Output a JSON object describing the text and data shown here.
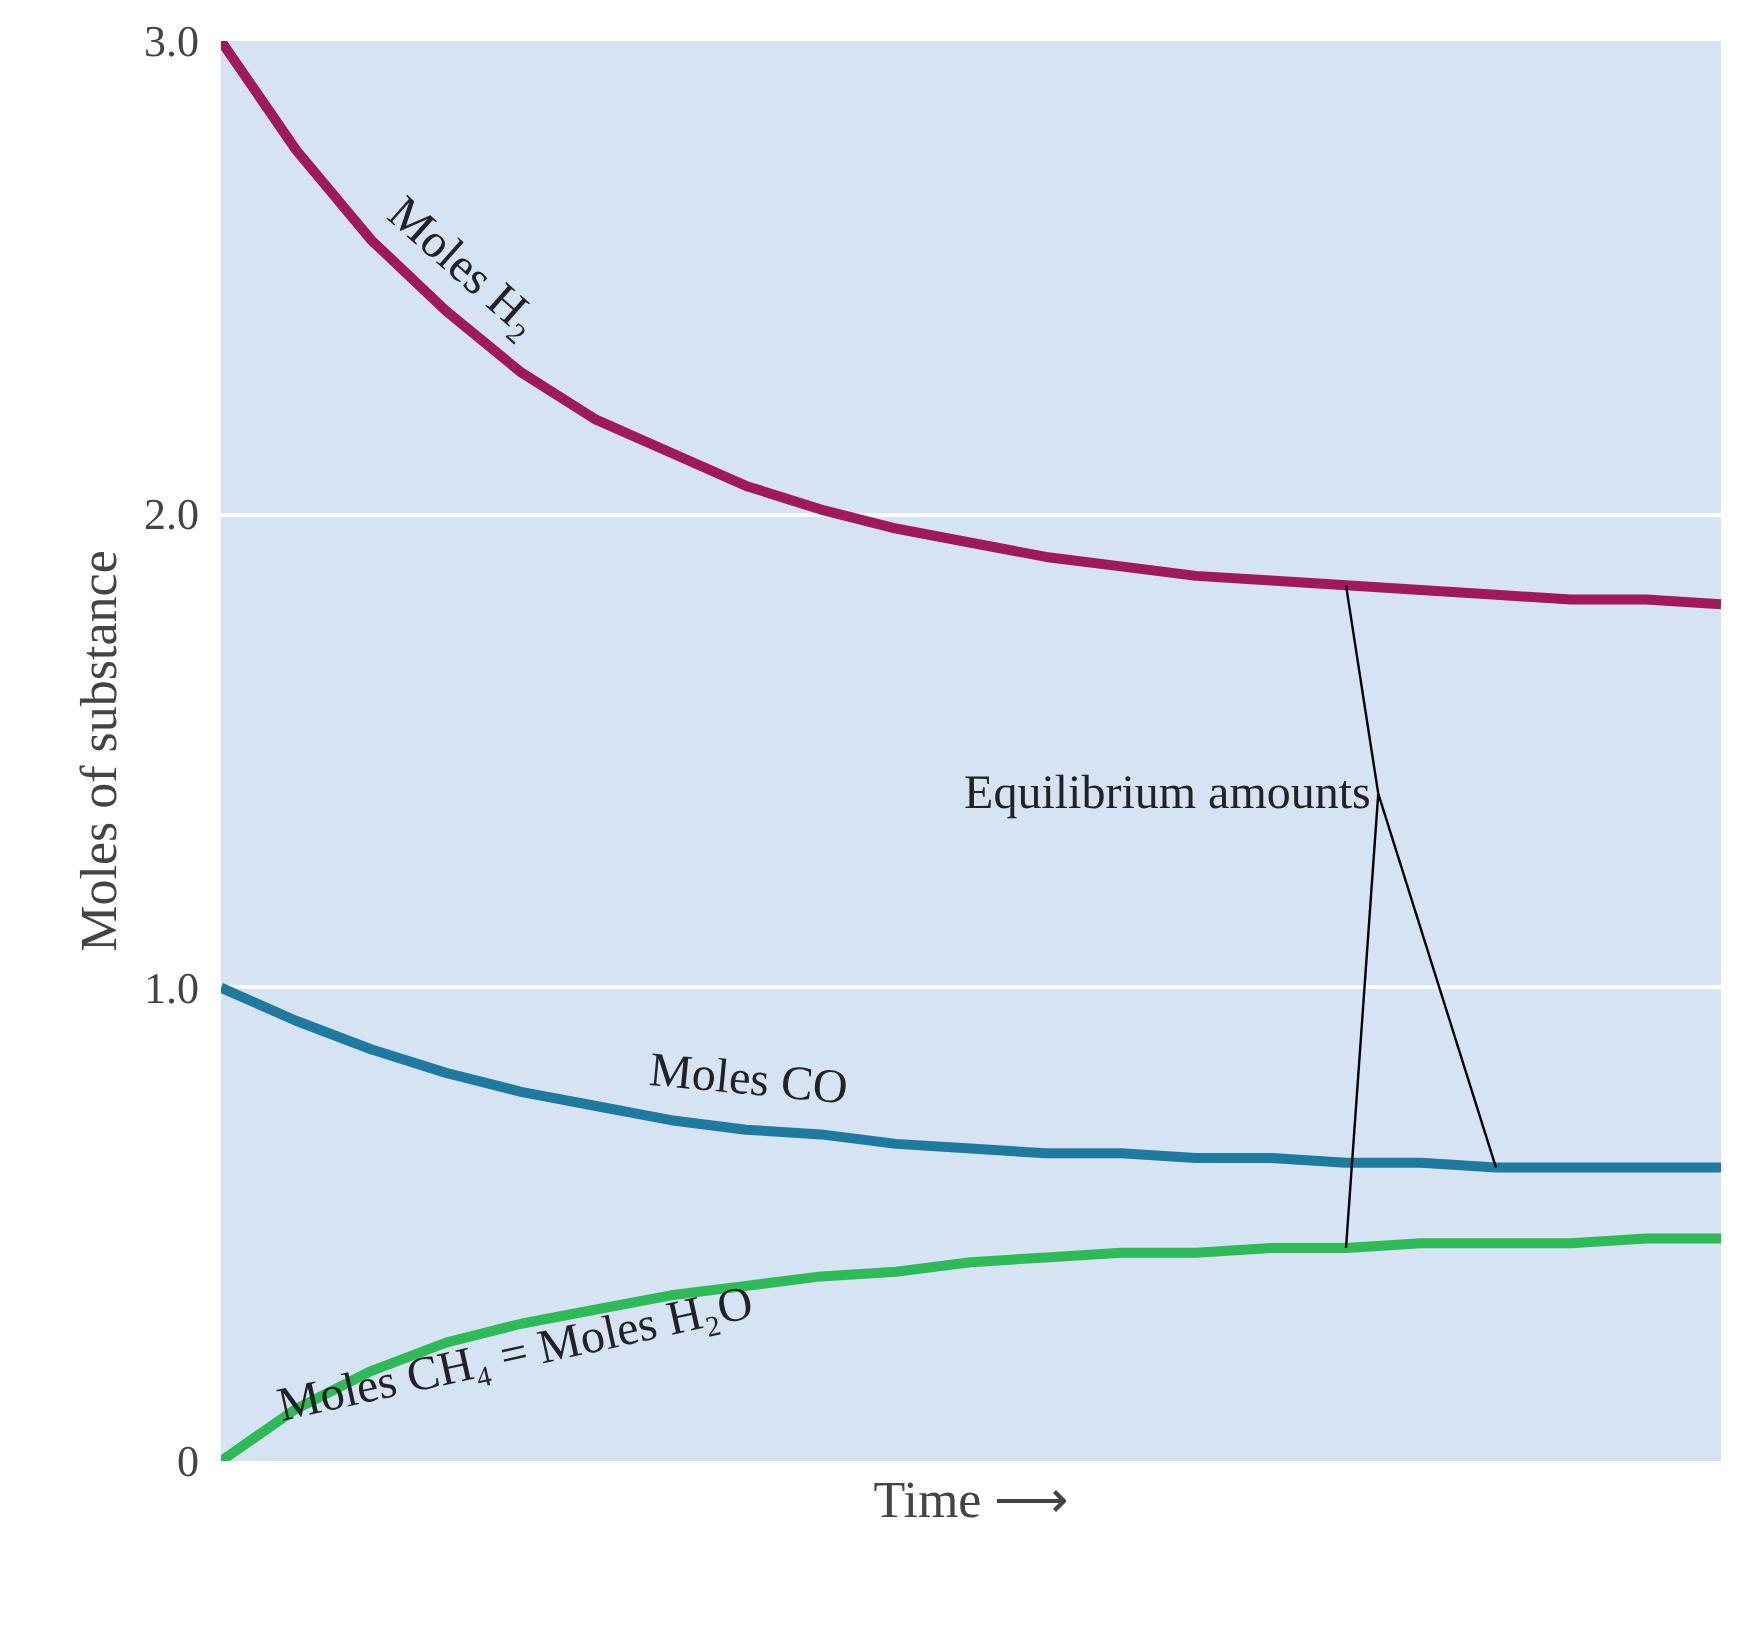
{
  "chart_data": {
    "type": "line",
    "xlabel": "Time ⟶",
    "ylabel": "Moles of substance",
    "categories": [
      null,
      null,
      null,
      null,
      null,
      null,
      null,
      null,
      null,
      null,
      null,
      null,
      null,
      null,
      null,
      null,
      null,
      null,
      null,
      null,
      null
    ],
    "series": [
      {
        "name": "Moles H₂",
        "color": "#a0195a",
        "values": [
          3.0,
          2.77,
          2.58,
          2.43,
          2.3,
          2.2,
          2.13,
          2.06,
          2.01,
          1.97,
          1.94,
          1.91,
          1.89,
          1.87,
          1.86,
          1.85,
          1.84,
          1.83,
          1.82,
          1.82,
          1.81
        ]
      },
      {
        "name": "Moles CO",
        "color": "#1f7aa0",
        "values": [
          1.0,
          0.93,
          0.87,
          0.82,
          0.78,
          0.75,
          0.72,
          0.7,
          0.69,
          0.67,
          0.66,
          0.65,
          0.65,
          0.64,
          0.64,
          0.63,
          0.63,
          0.62,
          0.62,
          0.62,
          0.62
        ]
      },
      {
        "name": "Moles CH₄ = Moles H₂O",
        "color": "#2dba57",
        "values": [
          0,
          0.11,
          0.19,
          0.25,
          0.29,
          0.32,
          0.35,
          0.37,
          0.39,
          0.4,
          0.42,
          0.43,
          0.44,
          0.44,
          0.45,
          0.45,
          0.46,
          0.46,
          0.46,
          0.47,
          0.47
        ]
      }
    ],
    "annotations": [
      "Equilibrium amounts"
    ],
    "ylim": [
      0,
      3.0
    ],
    "yticks": [
      0,
      {
        "value": 1,
        "label": "1.0"
      },
      {
        "value": 2,
        "label": "2.0"
      },
      {
        "value": 3,
        "label": "3.0"
      }
    ],
    "grid": "y",
    "legend": false,
    "tick_labels": "y",
    "marker": "none",
    "line_style": "solid"
  }
}
